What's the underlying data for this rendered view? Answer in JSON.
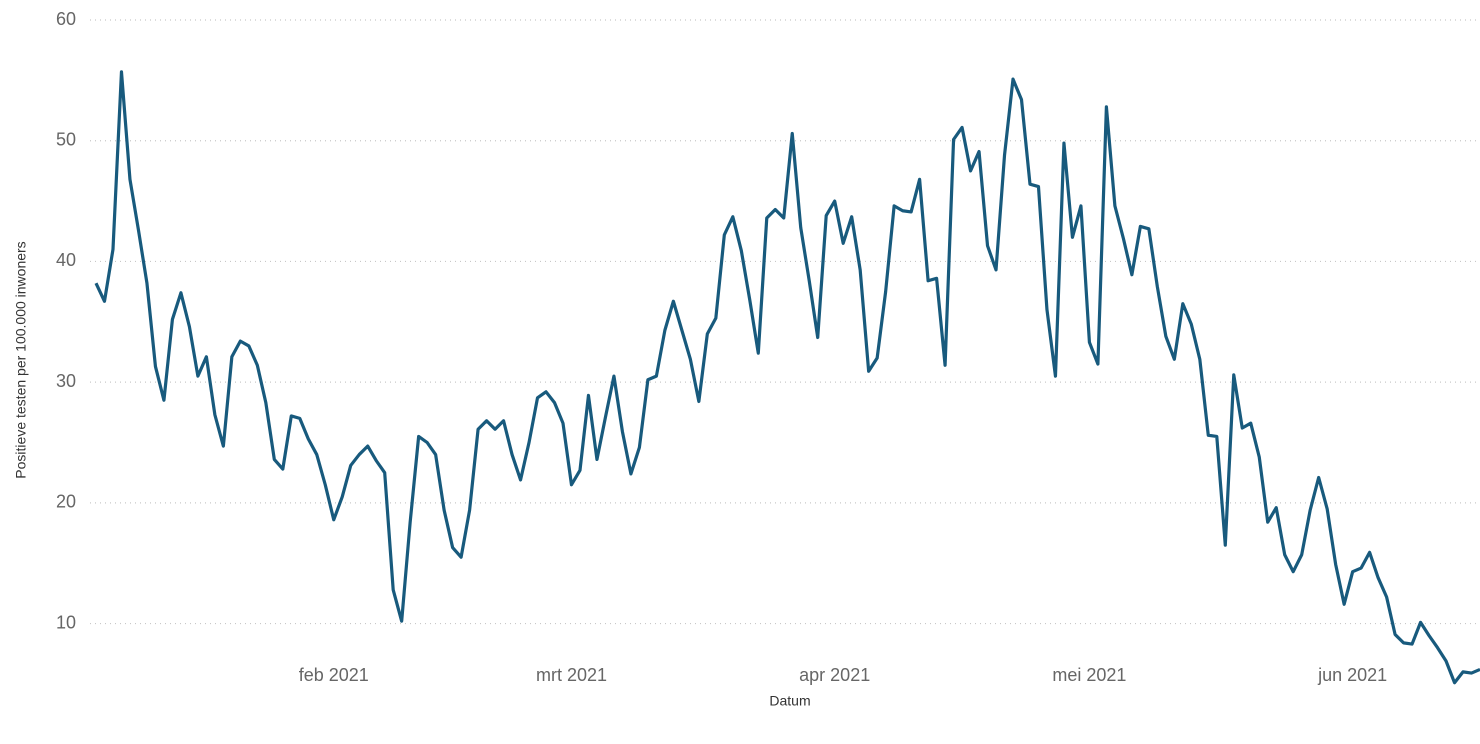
{
  "chart_data": {
    "type": "line",
    "xlabel": "Datum",
    "ylabel": "Positieve testen per 100.000 inwoners",
    "categories": [
      null,
      null,
      null,
      null,
      null,
      null,
      null,
      null,
      null,
      null,
      null,
      null,
      null,
      null,
      null,
      null,
      null,
      null,
      null,
      null,
      null,
      null,
      null,
      null,
      null,
      null,
      null,
      null,
      "feb 2021",
      null,
      null,
      null,
      null,
      null,
      null,
      null,
      null,
      null,
      null,
      null,
      null,
      null,
      null,
      null,
      null,
      null,
      null,
      null,
      null,
      null,
      null,
      null,
      null,
      null,
      null,
      null,
      "mrt 2021",
      null,
      null,
      null,
      null,
      null,
      null,
      null,
      null,
      null,
      null,
      null,
      null,
      null,
      null,
      null,
      null,
      null,
      null,
      null,
      null,
      null,
      null,
      null,
      null,
      null,
      null,
      null,
      null,
      null,
      null,
      "apr 2021",
      null,
      null,
      null,
      null,
      null,
      null,
      null,
      null,
      null,
      null,
      null,
      null,
      null,
      null,
      null,
      null,
      null,
      null,
      null,
      null,
      null,
      null,
      null,
      null,
      null,
      null,
      null,
      null,
      null,
      "mei 2021",
      null,
      null,
      null,
      null,
      null,
      null,
      null,
      null,
      null,
      null,
      null,
      null,
      null,
      null,
      null,
      null,
      null,
      null,
      null,
      null,
      null,
      null,
      null,
      null,
      null,
      null,
      null,
      null,
      null,
      null,
      "jun 2021",
      null,
      null,
      null,
      null,
      null,
      null,
      null,
      null,
      null,
      null,
      null,
      null,
      null,
      null,
      null
    ],
    "series": [
      {
        "name": "Positieve testen",
        "color": "#185a7d",
        "values": [
          38.2,
          36.7,
          41.0,
          55.7,
          46.8,
          42.6,
          38.2,
          31.3,
          28.5,
          35.2,
          37.4,
          34.6,
          30.5,
          32.1,
          27.3,
          24.7,
          32.1,
          33.4,
          33.0,
          31.4,
          28.3,
          23.6,
          22.8,
          27.2,
          27.0,
          25.3,
          24.0,
          21.5,
          18.6,
          20.5,
          23.1,
          24.0,
          24.7,
          23.5,
          22.5,
          12.8,
          10.2,
          18.4,
          25.5,
          25.0,
          24.0,
          19.4,
          16.3,
          15.5,
          19.4,
          26.1,
          26.8,
          26.1,
          26.8,
          24.0,
          21.9,
          25.0,
          28.7,
          29.2,
          28.3,
          26.6,
          21.5,
          22.7,
          28.9,
          23.6,
          27.1,
          30.5,
          25.9,
          22.4,
          24.6,
          30.2,
          30.5,
          34.3,
          36.7,
          34.3,
          31.9,
          28.4,
          34.0,
          35.3,
          42.2,
          43.7,
          40.9,
          36.8,
          32.4,
          43.6,
          44.3,
          43.6,
          50.6,
          42.8,
          38.4,
          33.7,
          43.8,
          45.0,
          41.5,
          43.7,
          39.3,
          30.9,
          32.0,
          37.5,
          44.6,
          44.2,
          44.1,
          46.8,
          38.4,
          38.6,
          31.4,
          50.1,
          51.1,
          47.5,
          49.1,
          41.3,
          39.3,
          48.8,
          55.1,
          53.4,
          46.4,
          46.2,
          36.0,
          30.5,
          49.8,
          42.0,
          44.6,
          33.3,
          31.5,
          52.8,
          44.6,
          41.9,
          38.9,
          42.9,
          42.7,
          37.9,
          33.8,
          31.9,
          36.5,
          34.8,
          31.9,
          25.6,
          25.5,
          16.5,
          30.6,
          26.2,
          26.6,
          23.8,
          18.4,
          19.6,
          15.7,
          14.3,
          15.7,
          19.4,
          22.1,
          19.5,
          14.9,
          11.6,
          14.3,
          14.6,
          15.9,
          13.8,
          12.2,
          9.1,
          8.4,
          8.3,
          10.1,
          9.0,
          8.0,
          6.9,
          5.1,
          6.0,
          5.9,
          6.2
        ]
      }
    ],
    "ylim": [
      4,
      60
    ],
    "yticks": [
      10,
      20,
      30,
      40,
      50,
      60
    ],
    "grid": true
  }
}
